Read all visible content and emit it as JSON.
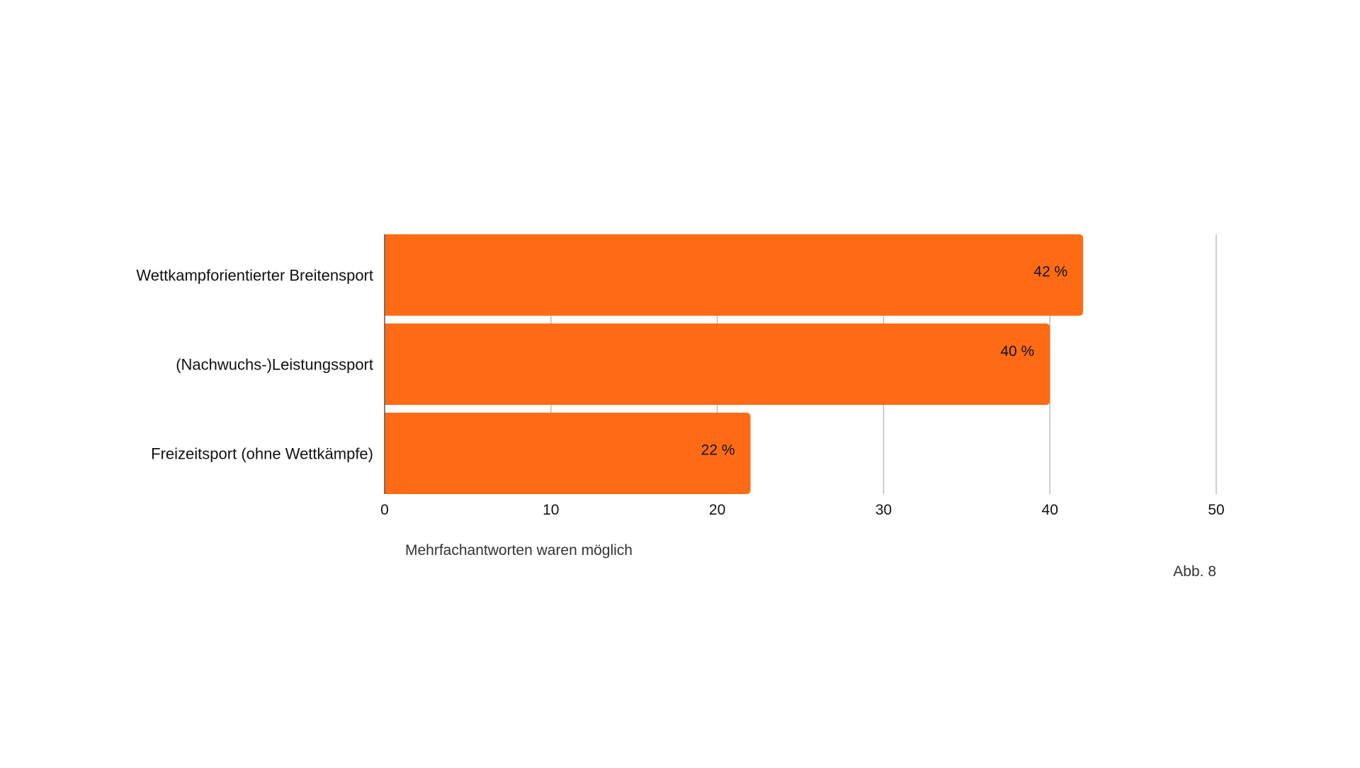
{
  "chart_data": {
    "type": "bar",
    "orientation": "horizontal",
    "categories": [
      "Wettkampforientierter Breitensport",
      "(Nachwuchs-)Leistungssport",
      "Freizeitsport (ohne Wettkämpfe)"
    ],
    "values": [
      42,
      40,
      22
    ],
    "value_labels": [
      "42 %",
      "40 %",
      "22 %"
    ],
    "xlim": [
      0,
      50
    ],
    "xticks": [
      0,
      10,
      20,
      30,
      40,
      50
    ],
    "grid": "vertical",
    "bar_color": "#FF6B14",
    "grid_color": "#BDBDBD",
    "note": "Mehrfachantworten waren möglich",
    "figure_label": "Abb. 8"
  }
}
